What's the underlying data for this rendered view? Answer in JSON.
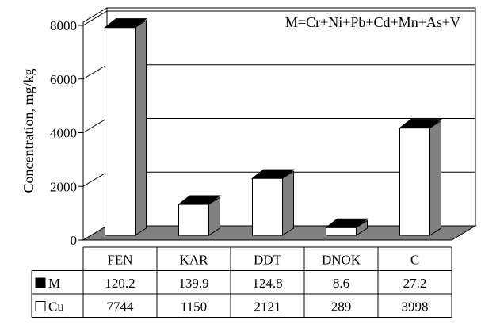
{
  "chart_data": {
    "type": "bar",
    "title": "",
    "annotation": "M=Cr+Ni+Pb+Cd+Mn+As+V",
    "ylabel": "Concentration, mg/kg",
    "xlabel": "",
    "ylim": [
      0,
      8000
    ],
    "yticks": [
      0,
      2000,
      4000,
      6000,
      8000
    ],
    "ytick_labels": [
      "0",
      "2000",
      "4000",
      "6000",
      "8000"
    ],
    "grid": true,
    "categories": [
      "FEN",
      "KAR",
      "DDT",
      "DNOK",
      "C"
    ],
    "series": [
      {
        "name": "M",
        "legend_marker": "■",
        "values": [
          120.2,
          139.9,
          124.8,
          8.6,
          27.2
        ],
        "value_labels": [
          "120.2",
          "139.9",
          "124.8",
          "8.6",
          "27.2"
        ],
        "color": "#000000"
      },
      {
        "name": "Cu",
        "legend_marker": "□",
        "values": [
          7744,
          1150,
          2121,
          289,
          3998
        ],
        "value_labels": [
          "7744",
          "1150",
          "2121",
          "289",
          "3998"
        ],
        "color": "#ffffff"
      }
    ],
    "data_table": true,
    "colors": {
      "floor": "#808080",
      "bar_side": "#808080",
      "bar_front": "#ffffff",
      "bar_top": "#000000",
      "wall": "#ffffff"
    }
  }
}
